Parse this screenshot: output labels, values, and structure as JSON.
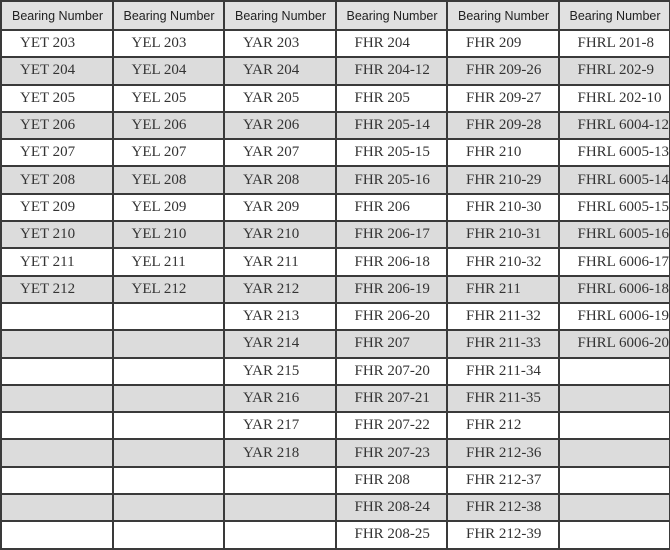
{
  "table": {
    "headers": [
      "Bearing Number",
      "Bearing Number",
      "Bearing Number",
      "Bearing Number",
      "Bearing Number",
      "Bearing Number"
    ],
    "rows": [
      [
        "YET 203",
        "YEL 203",
        "YAR 203",
        "FHR 204",
        "FHR 209",
        "FHRL 201-8"
      ],
      [
        "YET 204",
        "YEL 204",
        "YAR 204",
        "FHR 204-12",
        "FHR 209-26",
        "FHRL 202-9"
      ],
      [
        "YET 205",
        "YEL 205",
        "YAR 205",
        "FHR 205",
        "FHR 209-27",
        "FHRL 202-10"
      ],
      [
        "YET 206",
        "YEL 206",
        "YAR 206",
        "FHR 205-14",
        "FHR 209-28",
        "FHRL 6004-12"
      ],
      [
        "YET 207",
        "YEL 207",
        "YAR 207",
        "FHR 205-15",
        "FHR 210",
        "FHRL 6005-13"
      ],
      [
        "YET 208",
        "YEL 208",
        "YAR 208",
        "FHR 205-16",
        "FHR 210-29",
        "FHRL 6005-14"
      ],
      [
        "YET 209",
        "YEL 209",
        "YAR 209",
        "FHR 206",
        "FHR 210-30",
        "FHRL 6005-15"
      ],
      [
        "YET 210",
        "YEL 210",
        "YAR 210",
        "FHR 206-17",
        "FHR 210-31",
        "FHRL 6005-16"
      ],
      [
        "YET 211",
        "YEL 211",
        "YAR 211",
        "FHR 206-18",
        "FHR 210-32",
        "FHRL 6006-17"
      ],
      [
        "YET 212",
        "YEL 212",
        "YAR 212",
        "FHR 206-19",
        "FHR 211",
        "FHRL 6006-18"
      ],
      [
        "",
        "",
        "YAR 213",
        "FHR 206-20",
        "FHR 211-32",
        "FHRL 6006-19"
      ],
      [
        "",
        "",
        "YAR 214",
        "FHR 207",
        "FHR 211-33",
        "FHRL 6006-20"
      ],
      [
        "",
        "",
        "YAR 215",
        "FHR 207-20",
        "FHR 211-34",
        ""
      ],
      [
        "",
        "",
        "YAR 216",
        "FHR 207-21",
        "FHR 211-35",
        ""
      ],
      [
        "",
        "",
        "YAR 217",
        "FHR 207-22",
        "FHR 212",
        ""
      ],
      [
        "",
        "",
        "YAR 218",
        "FHR 207-23",
        "FHR 212-36",
        ""
      ],
      [
        "",
        "",
        "",
        "FHR 208",
        "FHR 212-37",
        ""
      ],
      [
        "",
        "",
        "",
        "FHR 208-24",
        "FHR 212-38",
        ""
      ],
      [
        "",
        "",
        "",
        "FHR 208-25",
        "FHR 212-39",
        ""
      ]
    ]
  },
  "colors": {
    "header_bg": "#e1e1e1",
    "alt_row_bg": "#dcdcdc",
    "border": "#3a3a3a"
  }
}
